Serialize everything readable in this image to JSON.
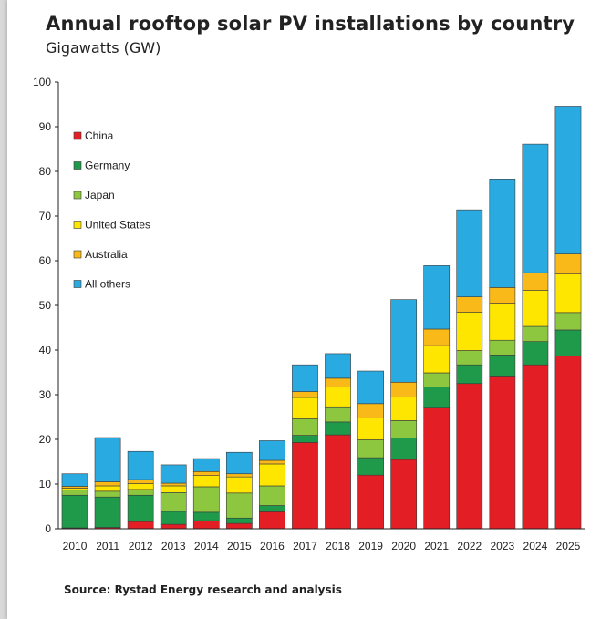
{
  "title": "Annual rooftop solar PV installations by country",
  "subtitle": "Gigawatts (GW)",
  "source": "Source: Rystad Energy research and analysis",
  "chart_data": {
    "type": "bar",
    "stacked": true,
    "title": "Annual rooftop solar PV installations by country",
    "subtitle": "Gigawatts (GW)",
    "xlabel": "",
    "ylabel": "",
    "ylim": [
      0,
      100
    ],
    "yticks": [
      0,
      10,
      20,
      30,
      40,
      50,
      60,
      70,
      80,
      90,
      100
    ],
    "grid": false,
    "legend_position": "top-left",
    "categories": [
      "2010",
      "2011",
      "2012",
      "2013",
      "2014",
      "2015",
      "2016",
      "2017",
      "2018",
      "2019",
      "2020",
      "2021",
      "2022",
      "2023",
      "2024",
      "2025"
    ],
    "series": [
      {
        "name": "China",
        "color": "#e31e24",
        "values": [
          0.2,
          0.3,
          1.6,
          1.0,
          1.8,
          1.2,
          3.8,
          19.3,
          21.0,
          12.0,
          15.5,
          27.2,
          32.5,
          34.2,
          36.7,
          38.7
        ]
      },
      {
        "name": "Germany",
        "color": "#1e9a4a",
        "values": [
          7.3,
          6.8,
          5.9,
          2.9,
          1.9,
          1.2,
          1.4,
          1.6,
          2.9,
          3.9,
          4.8,
          4.5,
          4.2,
          4.7,
          5.2,
          5.8
        ]
      },
      {
        "name": "Japan",
        "color": "#8dc63f",
        "values": [
          1.2,
          1.3,
          1.3,
          4.2,
          5.7,
          5.6,
          4.4,
          3.7,
          3.4,
          4.0,
          3.9,
          3.2,
          3.2,
          3.3,
          3.4,
          3.9
        ]
      },
      {
        "name": "United States",
        "color": "#ffe600",
        "values": [
          0.4,
          1.2,
          1.3,
          1.5,
          2.5,
          3.6,
          4.9,
          4.8,
          4.4,
          4.9,
          5.3,
          6.1,
          8.6,
          8.3,
          8.1,
          8.6
        ]
      },
      {
        "name": "Australia",
        "color": "#f9b919",
        "values": [
          0.4,
          0.9,
          0.9,
          0.6,
          0.9,
          0.7,
          0.8,
          1.3,
          2.0,
          3.2,
          3.3,
          3.7,
          3.4,
          3.5,
          3.9,
          4.5
        ]
      },
      {
        "name": "All others",
        "color": "#29abe2",
        "values": [
          2.8,
          9.9,
          6.3,
          4.1,
          2.9,
          4.8,
          4.4,
          6.0,
          5.5,
          7.3,
          18.5,
          14.2,
          19.5,
          24.3,
          28.8,
          33.1
        ]
      }
    ]
  }
}
